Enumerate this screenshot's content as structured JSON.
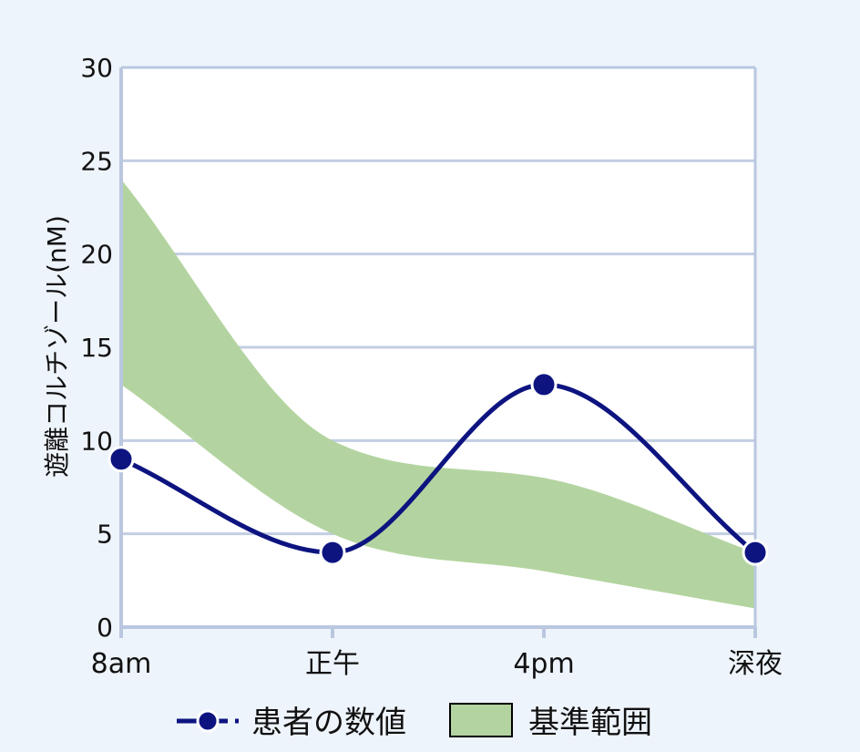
{
  "chart_data": {
    "type": "line",
    "categories": [
      "8am",
      "正午",
      "4pm",
      "深夜"
    ],
    "ylabel": "遊離コルチゾール(nM)",
    "xlabel": "",
    "ylim": [
      0,
      30
    ],
    "yticks": [
      "0",
      "5",
      "10",
      "15",
      "20",
      "25",
      "30"
    ],
    "grid": true,
    "legend_position": "bottom",
    "series": [
      {
        "name": "患者の数値",
        "type": "line",
        "values": [
          9,
          4,
          13,
          4
        ],
        "color": "#0d1480"
      }
    ],
    "band": {
      "name": "基準範囲",
      "type": "area",
      "lower": [
        13,
        5,
        3,
        1
      ],
      "upper": [
        24,
        10,
        8,
        4
      ],
      "color": "#b3d4a0"
    }
  },
  "colors": {
    "background": "#eef4fb",
    "plot_background": "#ffffff",
    "grid": "#c2cee2",
    "axis": "#b9c7df"
  }
}
